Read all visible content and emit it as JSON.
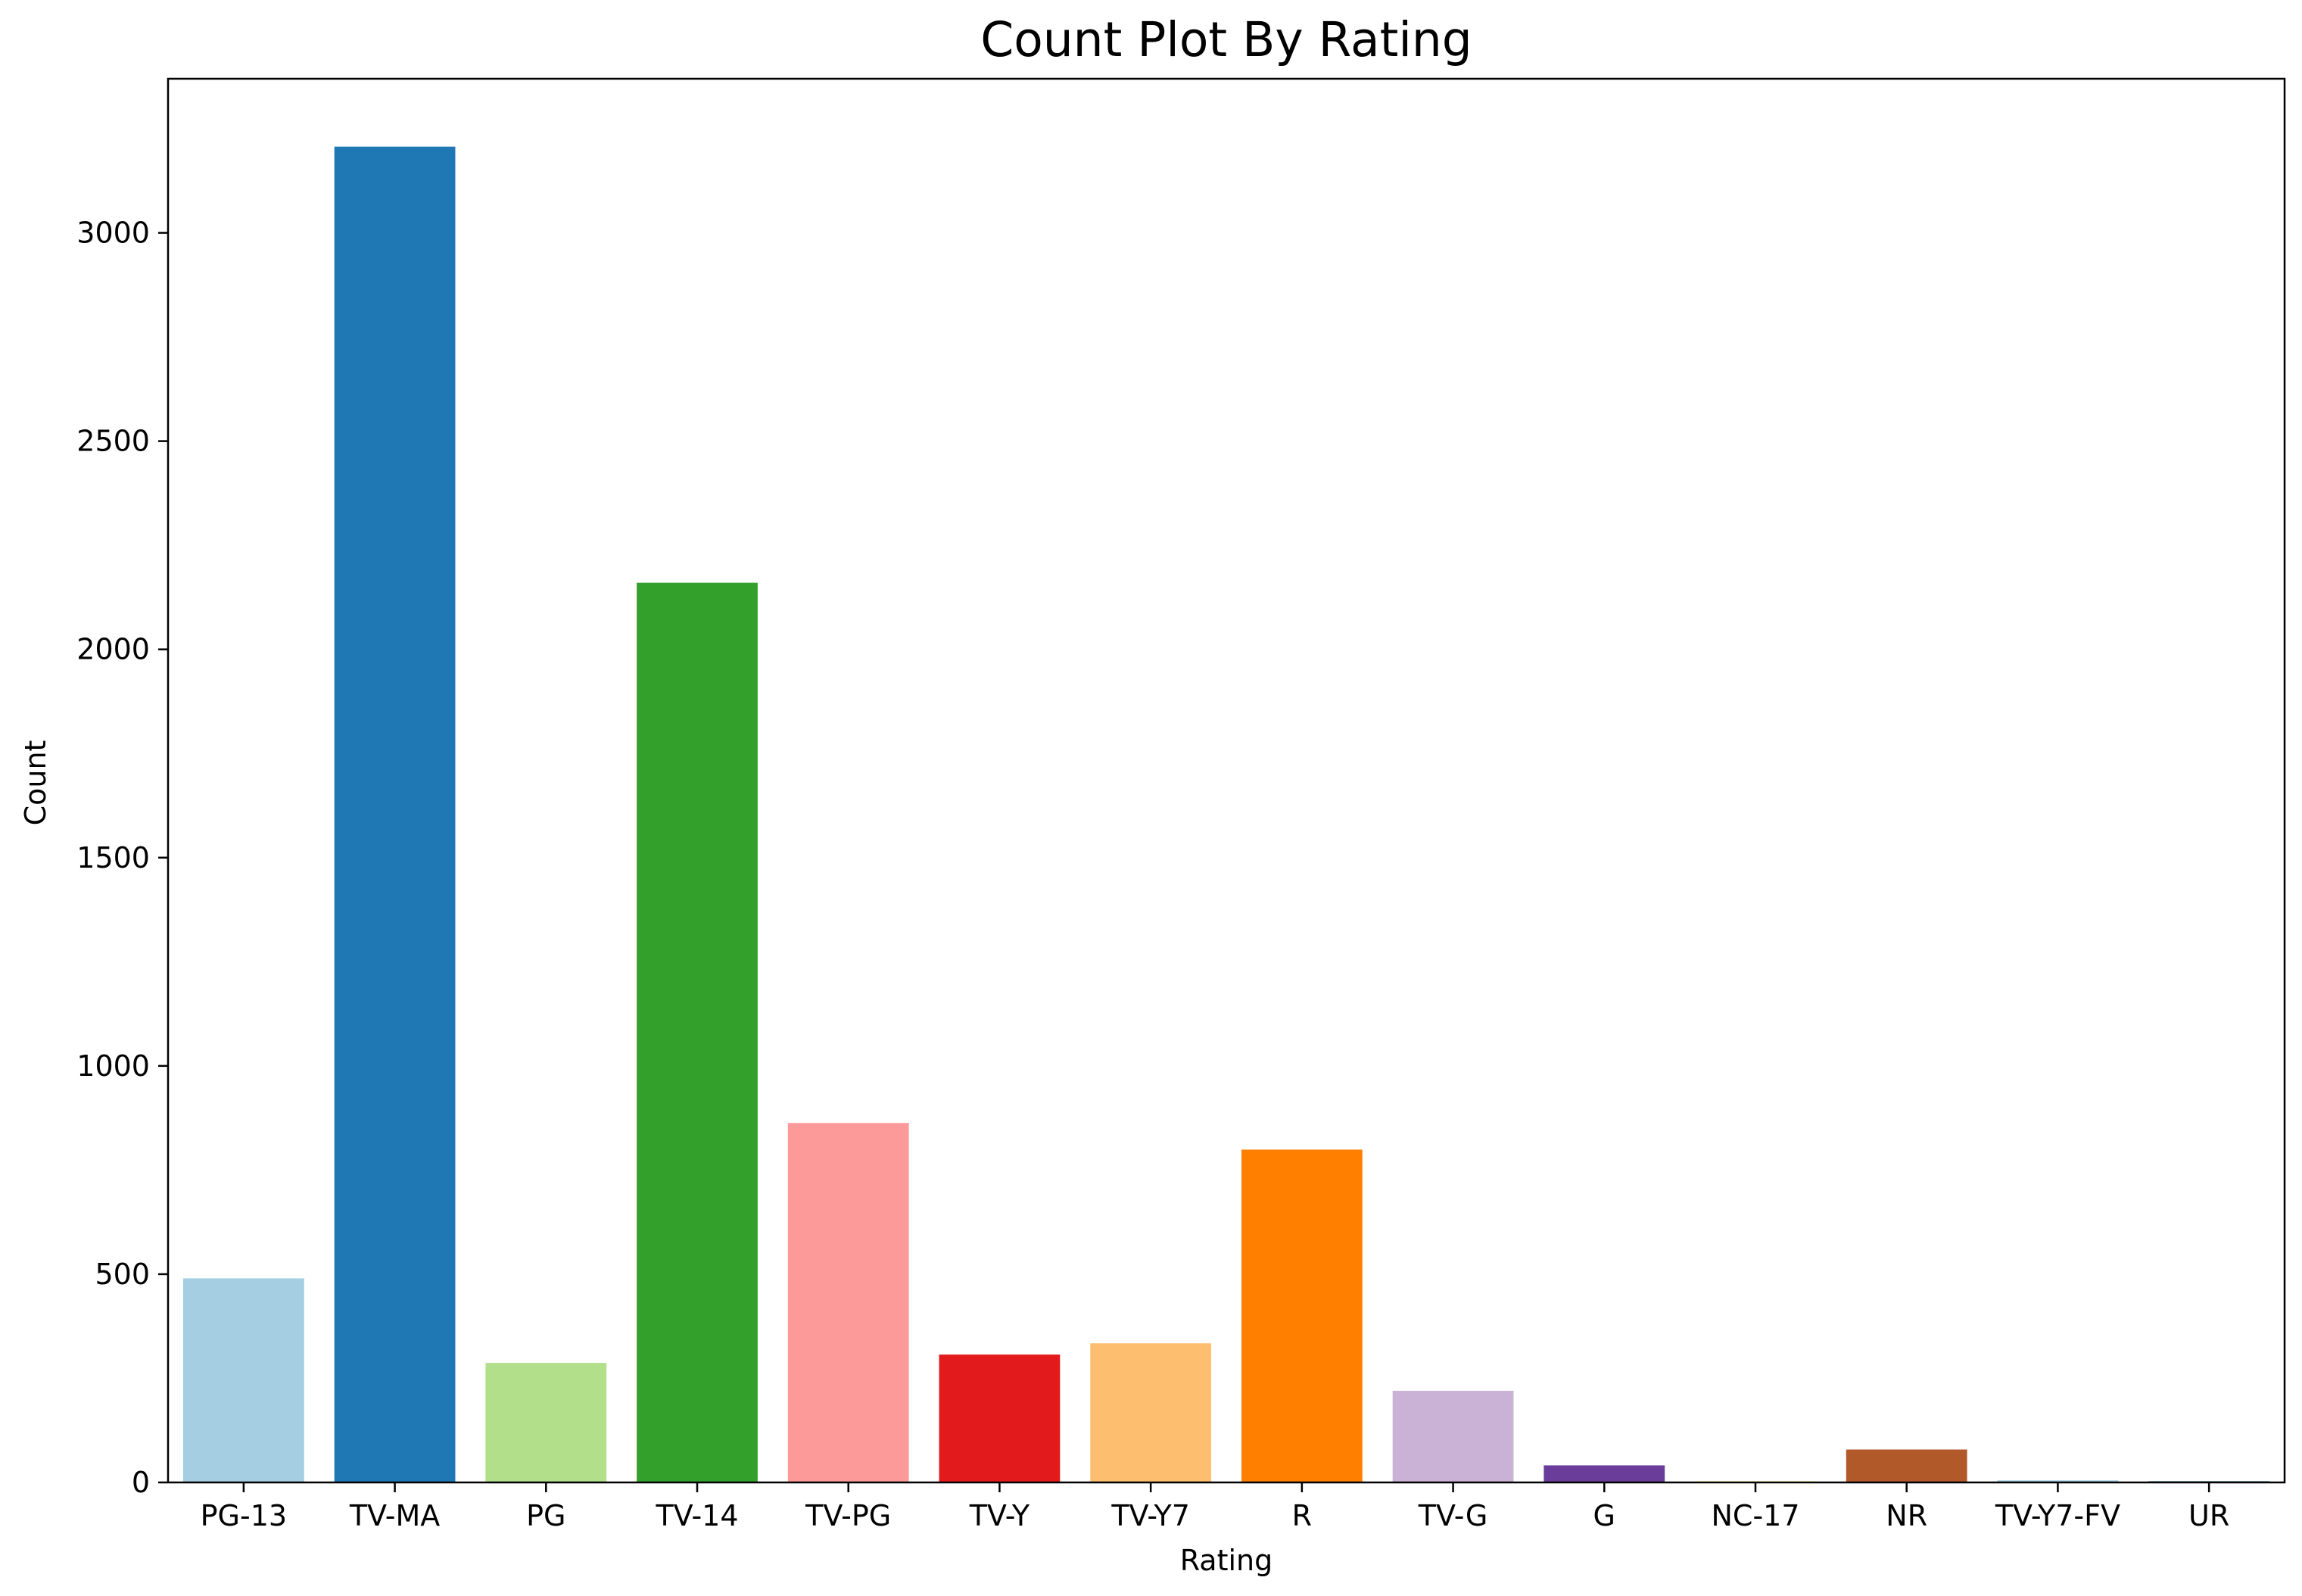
{
  "chart_data": {
    "type": "bar",
    "title": "Count Plot By Rating",
    "xlabel": "Rating",
    "ylabel": "Count",
    "categories": [
      "PG-13",
      "TV-MA",
      "PG",
      "TV-14",
      "TV-PG",
      "TV-Y",
      "TV-Y7",
      "R",
      "TV-G",
      "G",
      "NC-17",
      "NR",
      "TV-Y7-FV",
      "UR"
    ],
    "values": [
      490,
      3207,
      287,
      2160,
      863,
      307,
      334,
      799,
      220,
      41,
      3,
      79,
      5,
      3
    ],
    "colors": [
      "#a6cee3",
      "#1f78b4",
      "#b2df8a",
      "#33a02c",
      "#fb9a99",
      "#e31a1c",
      "#fdbf6f",
      "#ff7f00",
      "#cab2d6",
      "#6a3d9a",
      "#ffff99",
      "#b15928",
      "#a6cee3",
      "#1f78b4"
    ],
    "yticks": [
      0,
      500,
      1000,
      1500,
      2000,
      2500,
      3000
    ],
    "ylim": [
      0,
      3370
    ],
    "grid": false,
    "legend": "none"
  }
}
